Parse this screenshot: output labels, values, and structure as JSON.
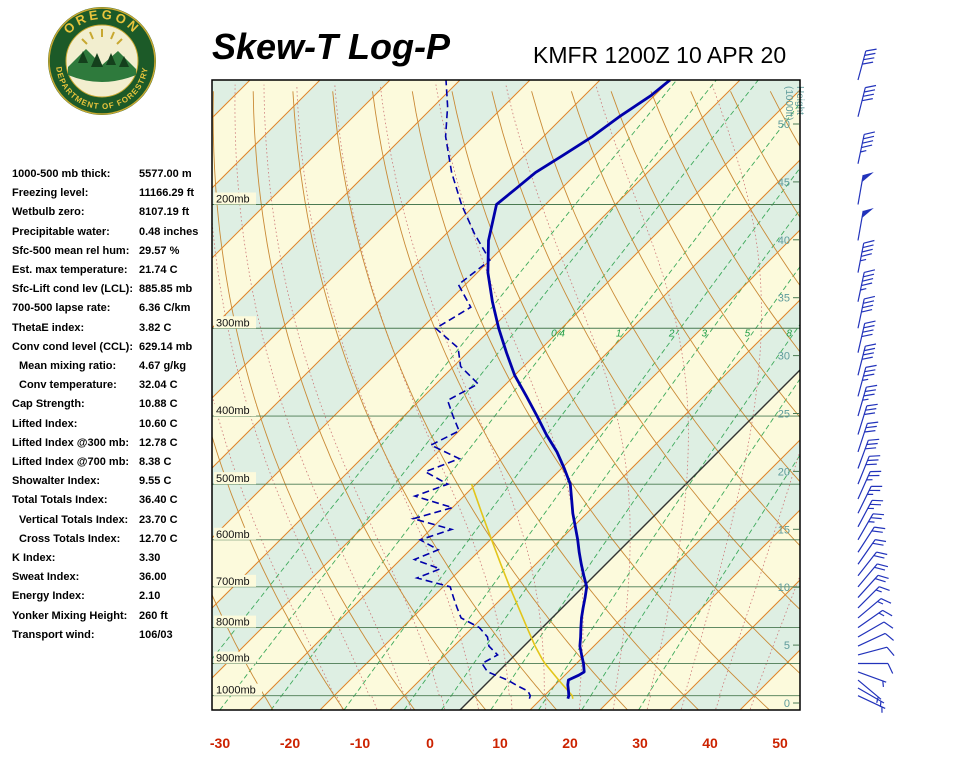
{
  "header": {
    "title": "Skew-T Log-P",
    "station": "KMFR 1200Z 10 APR 20",
    "logo": {
      "top": "OREGON",
      "bottom": "DEPARTMENT OF FORESTRY"
    }
  },
  "indices": [
    {
      "label": "1000-500 mb thick:",
      "value": "5577.00 m",
      "indent": false
    },
    {
      "label": "Freezing level:",
      "value": "11166.29 ft",
      "indent": false
    },
    {
      "label": "Wetbulb zero:",
      "value": "8107.19 ft",
      "indent": false
    },
    {
      "label": "Precipitable water:",
      "value": "0.48 inches",
      "indent": false
    },
    {
      "label": "Sfc-500 mean rel hum:",
      "value": "29.57 %",
      "indent": false
    },
    {
      "label": "Est. max temperature:",
      "value": "21.74 C",
      "indent": false
    },
    {
      "label": "Sfc-Lift cond lev (LCL):",
      "value": "885.85 mb",
      "indent": false
    },
    {
      "label": "700-500 lapse rate:",
      "value": "6.36 C/km",
      "indent": false
    },
    {
      "label": "ThetaE index:",
      "value": "3.82 C",
      "indent": false
    },
    {
      "label": "Conv cond level (CCL):",
      "value": "629.14 mb",
      "indent": false
    },
    {
      "label": "Mean mixing ratio:",
      "value": "4.67 g/kg",
      "indent": true
    },
    {
      "label": "Conv temperature:",
      "value": "32.04 C",
      "indent": true
    },
    {
      "label": "Cap Strength:",
      "value": "10.88 C",
      "indent": false
    },
    {
      "label": "Lifted Index:",
      "value": "10.60 C",
      "indent": false
    },
    {
      "label": "Lifted Index @300 mb:",
      "value": "12.78 C",
      "indent": false
    },
    {
      "label": "Lifted Index @700 mb:",
      "value": "8.38 C",
      "indent": false
    },
    {
      "label": "Showalter Index:",
      "value": "9.55 C",
      "indent": false
    },
    {
      "label": "Total Totals Index:",
      "value": "36.40 C",
      "indent": false
    },
    {
      "label": "Vertical Totals Index:",
      "value": "23.70 C",
      "indent": true
    },
    {
      "label": "Cross Totals Index:",
      "value": "12.70 C",
      "indent": true
    },
    {
      "label": "K Index:",
      "value": "3.30",
      "indent": false
    },
    {
      "label": "Sweat Index:",
      "value": "36.00",
      "indent": false
    },
    {
      "label": "Energy Index:",
      "value": "2.10",
      "indent": false
    },
    {
      "label": "Yonker Mixing Height:",
      "value": "260 ft",
      "indent": false
    },
    {
      "label": "Transport wind:",
      "value": "106/03",
      "indent": false
    }
  ],
  "chart_data": {
    "type": "skew-t-log-p",
    "title": "Skew-T Log-P",
    "station": "KMFR 1200Z 10 APR 20",
    "x_axis": {
      "unit": "C",
      "ticks": [
        -30,
        -20,
        -10,
        0,
        10,
        20,
        30,
        40,
        50
      ]
    },
    "pressure_lines": [
      200,
      300,
      400,
      500,
      600,
      700,
      800,
      900,
      1000
    ],
    "pressure_label_suffix": "mb",
    "height_axis": {
      "title_line1": "Height",
      "title_line2": "(1000ft)",
      "ticks": [
        0,
        5,
        10,
        15,
        20,
        25,
        30,
        35,
        40,
        45,
        50
      ]
    },
    "mixing_ratio_lines": [
      0.1,
      0.2,
      0.4,
      1,
      2,
      3,
      5,
      8,
      12,
      20
    ],
    "mixing_ratio_labels": [
      0.4,
      1,
      2,
      3,
      5,
      8
    ],
    "sounding": {
      "temperature_c_by_mb": [
        [
          1010,
          13.8
        ],
        [
          1000,
          13.5
        ],
        [
          985,
          12.8
        ],
        [
          965,
          11.8
        ],
        [
          950,
          11.2
        ],
        [
          935,
          12.0
        ],
        [
          925,
          12.3
        ],
        [
          900,
          11.0
        ],
        [
          875,
          9.5
        ],
        [
          850,
          8.0
        ],
        [
          825,
          6.8
        ],
        [
          800,
          5.5
        ],
        [
          775,
          4.2
        ],
        [
          750,
          3.0
        ],
        [
          725,
          1.8
        ],
        [
          700,
          0.5
        ],
        [
          675,
          -1.5
        ],
        [
          650,
          -3.5
        ],
        [
          625,
          -5.5
        ],
        [
          600,
          -7.5
        ],
        [
          575,
          -9.7
        ],
        [
          550,
          -12.0
        ],
        [
          525,
          -14.2
        ],
        [
          500,
          -16.5
        ],
        [
          475,
          -19.6
        ],
        [
          450,
          -23.0
        ],
        [
          425,
          -27.0
        ],
        [
          400,
          -31.0
        ],
        [
          375,
          -35.3
        ],
        [
          350,
          -40.0
        ],
        [
          325,
          -44.4
        ],
        [
          300,
          -49.0
        ],
        [
          275,
          -53.7
        ],
        [
          250,
          -58.5
        ],
        [
          225,
          -63.0
        ],
        [
          200,
          -67.0
        ],
        [
          190,
          -66.5
        ],
        [
          180,
          -66.0
        ],
        [
          170,
          -64.5
        ],
        [
          160,
          -63.0
        ],
        [
          150,
          -62.0
        ],
        [
          140,
          -60.5
        ],
        [
          133,
          -60.0
        ]
      ],
      "dewpoint_c_by_mb": [
        [
          1010,
          8.3
        ],
        [
          1000,
          8.0
        ],
        [
          985,
          7.0
        ],
        [
          970,
          5.0
        ],
        [
          950,
          2.5
        ],
        [
          925,
          -1.5
        ],
        [
          900,
          -3.5
        ],
        [
          875,
          -2.5
        ],
        [
          850,
          -5.0
        ],
        [
          825,
          -6.5
        ],
        [
          800,
          -9.0
        ],
        [
          775,
          -13.0
        ],
        [
          750,
          -15.0
        ],
        [
          725,
          -17.0
        ],
        [
          700,
          -19.0
        ],
        [
          680,
          -25.0
        ],
        [
          660,
          -23.0
        ],
        [
          640,
          -28.0
        ],
        [
          620,
          -26.0
        ],
        [
          600,
          -30.0
        ],
        [
          580,
          -27.0
        ],
        [
          560,
          -34.0
        ],
        [
          540,
          -30.0
        ],
        [
          520,
          -37.0
        ],
        [
          500,
          -34.0
        ],
        [
          480,
          -39.0
        ],
        [
          460,
          -36.0
        ],
        [
          440,
          -42.0
        ],
        [
          420,
          -40.0
        ],
        [
          400,
          -43.0
        ],
        [
          380,
          -46.0
        ],
        [
          360,
          -44.0
        ],
        [
          340,
          -49.0
        ],
        [
          320,
          -52.0
        ],
        [
          300,
          -58.0
        ],
        [
          280,
          -56.0
        ],
        [
          260,
          -61.0
        ],
        [
          240,
          -60.0
        ],
        [
          220,
          -66.0
        ],
        [
          200,
          -72.0
        ],
        [
          180,
          -78.0
        ],
        [
          160,
          -84.0
        ],
        [
          145,
          -88.0
        ],
        [
          133,
          -92.0
        ]
      ],
      "parcel_c_by_mb": [
        [
          1010,
          14.5
        ],
        [
          1000,
          14.0
        ],
        [
          950,
          9.8
        ],
        [
          900,
          5.5
        ],
        [
          886,
          4.4
        ],
        [
          850,
          1.6
        ],
        [
          800,
          -2.2
        ],
        [
          750,
          -6.2
        ],
        [
          700,
          -10.5
        ],
        [
          650,
          -15.0
        ],
        [
          600,
          -19.8
        ],
        [
          550,
          -25.0
        ],
        [
          500,
          -30.6
        ]
      ],
      "winds_mb_dir_kt": [
        [
          1000,
          115,
          3
        ],
        [
          975,
          120,
          5
        ],
        [
          950,
          130,
          5
        ],
        [
          925,
          110,
          7
        ],
        [
          900,
          90,
          10
        ],
        [
          875,
          75,
          10
        ],
        [
          850,
          65,
          10
        ],
        [
          825,
          60,
          12
        ],
        [
          800,
          55,
          15
        ],
        [
          775,
          50,
          15
        ],
        [
          750,
          45,
          15
        ],
        [
          725,
          42,
          18
        ],
        [
          700,
          40,
          20
        ],
        [
          675,
          38,
          20
        ],
        [
          650,
          35,
          20
        ],
        [
          625,
          33,
          22
        ],
        [
          600,
          30,
          25
        ],
        [
          575,
          28,
          25
        ],
        [
          550,
          26,
          25
        ],
        [
          525,
          24,
          25
        ],
        [
          500,
          22,
          28
        ],
        [
          475,
          20,
          30
        ],
        [
          450,
          18,
          30
        ],
        [
          425,
          17,
          32
        ],
        [
          400,
          16,
          35
        ],
        [
          375,
          15,
          35
        ],
        [
          350,
          14,
          38
        ],
        [
          325,
          13,
          40
        ],
        [
          300,
          12,
          42
        ],
        [
          275,
          12,
          45
        ],
        [
          250,
          11,
          45
        ],
        [
          225,
          10,
          48
        ],
        [
          200,
          10,
          50
        ],
        [
          175,
          12,
          45
        ],
        [
          150,
          14,
          40
        ],
        [
          133,
          15,
          38
        ]
      ]
    },
    "colors": {
      "band_cream": "#FCFADC",
      "band_teal": "#DEEFE3",
      "isotherm": "#E08428",
      "dry_adiabat": "#C98A36",
      "moist_adiabat": "#CC7777",
      "mixing_ratio": "#3FAA5C",
      "mixing_label": "#1F9E46",
      "pressure_line": "#4A7A52",
      "zero_isotherm": "#333333",
      "trace": "#0000AA",
      "parcel": "#E3C51A",
      "wind": "#2233BB",
      "axis_text": "#CC2200",
      "height_text": "#5E9B9B",
      "pressure_text": "#111111"
    }
  }
}
